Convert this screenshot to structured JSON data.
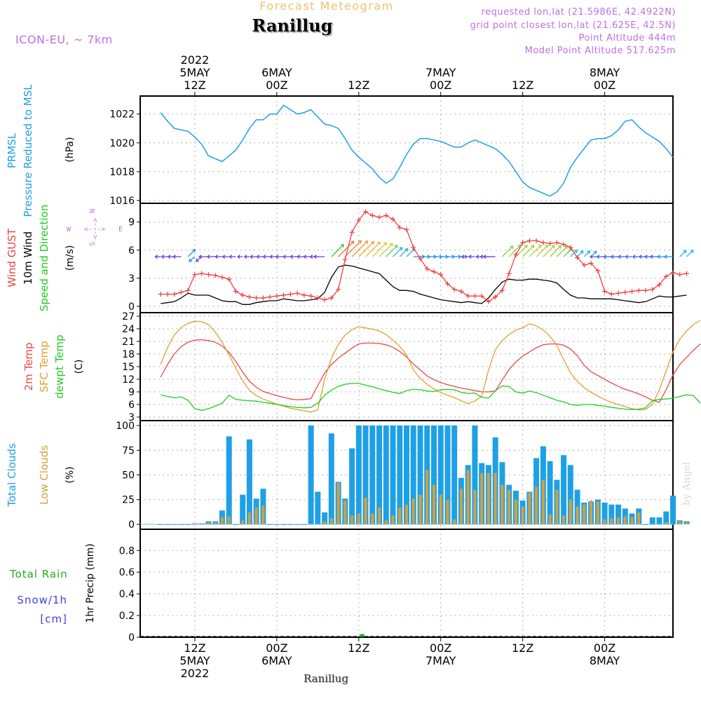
{
  "header": {
    "product": "Forecast Meteogram",
    "location": "Ranillug",
    "model": "ICON-EU, ~ 7km",
    "requested": "requested lon,lat (21.5986E, 42.4922N)",
    "grid_point": "grid point closest lon,lat (21.625E, 42.5N)",
    "point_altitude": "Point Altitude 444m",
    "model_altitude": "Model Point Altitude 517.625m",
    "credit": "by Angel",
    "footer_location": "Ranillug"
  },
  "time_axis": {
    "top": [
      {
        "hour": 12,
        "lines": [
          "2022",
          "5MAY",
          "12Z"
        ]
      },
      {
        "hour": 24,
        "lines": [
          "6MAY",
          "00Z"
        ]
      },
      {
        "hour": 36,
        "lines": [
          "12Z"
        ]
      },
      {
        "hour": 48,
        "lines": [
          "7MAY",
          "00Z"
        ]
      },
      {
        "hour": 60,
        "lines": [
          "12Z"
        ]
      },
      {
        "hour": 72,
        "lines": [
          "8MAY",
          "00Z"
        ]
      }
    ],
    "bottom": [
      {
        "hour": 12,
        "lines": [
          "12Z",
          "5MAY",
          "2022"
        ]
      },
      {
        "hour": 24,
        "lines": [
          "00Z",
          "6MAY"
        ]
      },
      {
        "hour": 36,
        "lines": [
          "12Z"
        ]
      },
      {
        "hour": 48,
        "lines": [
          "00Z",
          "7MAY"
        ]
      },
      {
        "hour": 60,
        "lines": [
          "12Z"
        ]
      },
      {
        "hour": 72,
        "lines": [
          "00Z",
          "8MAY"
        ]
      }
    ]
  },
  "colors": {
    "pressure": "#1ea0e6",
    "gust": "#f04040",
    "wind": "#000000",
    "t2m": "#e84848",
    "sfc": "#e0a030",
    "dewpt": "#22cc22",
    "total_cloud": "#1ea0e6",
    "low_cloud": "#d4a040",
    "rain": "#22aa22",
    "snow": "#4040e0",
    "header_purple": "#c070e0",
    "header_orange": "#f0c070",
    "compass": "#c070e0"
  },
  "chart_data": [
    {
      "panel": "pressure",
      "type": "line",
      "label_lines": [
        {
          "text": "PRMSL",
          "color": "#1ea0e6"
        },
        {
          "text": "Pressure Reduced to MSL",
          "color": "#1ea0e6"
        }
      ],
      "unit": "(hPa)",
      "ylim": [
        1016,
        1023.2
      ],
      "yticks": [
        "1016",
        "1018",
        "1020",
        "1022"
      ],
      "x_start": 7,
      "x_step": 1,
      "values": [
        1022.1,
        1021.5,
        1021.0,
        1020.9,
        1020.8,
        1020.4,
        1019.9,
        1019.1,
        1018.9,
        1018.7,
        1019.1,
        1019.5,
        1020.2,
        1021.0,
        1021.6,
        1021.6,
        1022.0,
        1022.0,
        1022.6,
        1022.3,
        1022.0,
        1022.1,
        1022.3,
        1021.8,
        1021.3,
        1021.2,
        1021.0,
        1020.3,
        1019.5,
        1019.0,
        1018.6,
        1018.2,
        1017.6,
        1017.2,
        1017.5,
        1018.3,
        1019.2,
        1019.9,
        1020.3,
        1020.3,
        1020.2,
        1020.1,
        1019.9,
        1019.7,
        1019.7,
        1020.0,
        1020.2,
        1020.0,
        1019.8,
        1019.6,
        1019.2,
        1018.7,
        1018.0,
        1017.3,
        1016.9,
        1016.7,
        1016.5,
        1016.3,
        1016.6,
        1017.2,
        1018.3,
        1019.0,
        1019.6,
        1020.2,
        1020.3,
        1020.3,
        1020.5,
        1020.9,
        1021.5,
        1021.6,
        1021.1,
        1020.7,
        1020.4,
        1020.1,
        1019.6,
        1019.0
      ]
    },
    {
      "panel": "wind",
      "type": "line",
      "label_lines": [
        {
          "text": "Wind GUST",
          "color": "#f04040"
        },
        {
          "text": "10m Wind",
          "color": "#000000"
        },
        {
          "text": "Speed and Direction",
          "color": "#22cc22"
        }
      ],
      "unit": "(m/s)",
      "compass": "N S W E <--> ",
      "ylim": [
        0,
        11
      ],
      "yticks": [
        "0",
        "3",
        "6",
        "9"
      ],
      "x_start": 7,
      "x_step": 1,
      "series": [
        {
          "name": "Wind GUST",
          "values": [
            1.3,
            1.3,
            1.3,
            1.5,
            1.7,
            3.4,
            3.5,
            3.4,
            3.3,
            3.1,
            2.9,
            1.6,
            1.2,
            1.0,
            0.9,
            0.9,
            1.0,
            1.1,
            1.2,
            1.3,
            1.4,
            1.2,
            1.1,
            0.9,
            0.7,
            0.9,
            1.8,
            5.0,
            7.9,
            9.2,
            10.1,
            9.7,
            9.5,
            9.7,
            9.3,
            8.4,
            8.2,
            6.3,
            5.1,
            4.0,
            3.7,
            3.4,
            2.4,
            1.8,
            1.6,
            1.1,
            1.1,
            1.1,
            0.5,
            1.0,
            1.7,
            3.5,
            5.5,
            6.8,
            7.0,
            7.0,
            6.8,
            6.7,
            6.8,
            6.6,
            6.3,
            5.2,
            4.4,
            4.6,
            3.8,
            1.6,
            1.3,
            1.4,
            1.5,
            1.6,
            1.7,
            1.7,
            1.8,
            2.3,
            3.2,
            3.6,
            3.4,
            3.5
          ]
        },
        {
          "name": "10m Wind",
          "values": [
            0.3,
            0.4,
            0.5,
            0.9,
            1.4,
            1.2,
            1.2,
            1.2,
            0.9,
            0.6,
            0.5,
            0.5,
            0.2,
            0.2,
            0.4,
            0.5,
            0.6,
            0.6,
            0.8,
            0.7,
            0.6,
            0.6,
            0.7,
            0.8,
            1.5,
            3.1,
            4.2,
            4.4,
            4.3,
            4.1,
            3.9,
            3.7,
            3.5,
            2.8,
            2.1,
            1.7,
            1.7,
            1.6,
            1.3,
            1.1,
            0.9,
            0.7,
            0.6,
            0.5,
            0.4,
            0.5,
            0.4,
            0.3,
            0.9,
            1.8,
            2.6,
            2.9,
            2.8,
            2.8,
            2.9,
            2.9,
            2.8,
            2.7,
            2.5,
            1.8,
            1.2,
            0.9,
            0.9,
            0.8,
            0.8,
            0.8,
            0.8,
            0.7,
            0.6,
            0.5,
            0.4,
            0.5,
            0.8,
            1.1,
            1.0,
            1.0,
            1.1,
            1.2
          ]
        }
      ],
      "barb_level": 5.3,
      "barb_dirs": [
        "W",
        "W",
        "W",
        "W",
        "NE",
        "SW",
        "SW",
        "W",
        "W",
        "W",
        "W",
        "W",
        "W",
        "W",
        "W",
        "W",
        "W",
        "W",
        "W",
        "W",
        "W",
        "W",
        "W",
        "W",
        "W",
        "NE",
        "NE",
        "NE",
        "NE",
        "NE",
        "NE",
        "NE",
        "NE",
        "NE",
        "NE",
        "NE",
        "NE",
        "E",
        "E",
        "E",
        "E",
        "E",
        "E",
        "E",
        "E",
        "W",
        "W",
        "W",
        "W",
        "W",
        "NE",
        "NE",
        "NE",
        "NE",
        "NE",
        "NE",
        "NE",
        "NE",
        "NE",
        "NE",
        "NE",
        "NE",
        "NE",
        "NE",
        "W",
        "W",
        "W",
        "W",
        "W",
        "W",
        "W",
        "W",
        "W",
        "W",
        "W",
        "W",
        "NE",
        "NE"
      ],
      "barb_colors": [
        "#7040d0",
        "#7040d0",
        "#7040d0",
        "#7040d0",
        "#2090e0",
        "#2090e0",
        "#7040d0",
        "#7040d0",
        "#7040d0",
        "#7040d0",
        "#7040d0",
        "#7040d0",
        "#7040d0",
        "#7040d0",
        "#7040d0",
        "#7040d0",
        "#7040d0",
        "#7040d0",
        "#7040d0",
        "#7040d0",
        "#7040d0",
        "#7040d0",
        "#7040d0",
        "#7040d0",
        "#7040d0",
        "#30c030",
        "#f07030",
        "#f08030",
        "#f09030",
        "#f0a030",
        "#f0b030",
        "#e0c030",
        "#c0d030",
        "#60d040",
        "#20b0e0",
        "#20b0e0",
        "#20b0e0",
        "#2090e0",
        "#2090e0",
        "#2090e0",
        "#2090e0",
        "#2090e0",
        "#2090e0",
        "#2090e0",
        "#2090e0",
        "#7040d0",
        "#7040d0",
        "#7040d0",
        "#7040d0",
        "#7040d0",
        "#80d030",
        "#90d030",
        "#a0d030",
        "#a0d030",
        "#b0d030",
        "#b0d030",
        "#a0d030",
        "#90d030",
        "#80d040",
        "#60c050",
        "#20b0e0",
        "#20b0e0",
        "#20b0e0",
        "#20b0e0",
        "#4060e0",
        "#4060e0",
        "#4060e0",
        "#4060e0",
        "#4060e0",
        "#4060e0",
        "#4060e0",
        "#4060e0",
        "#4060e0",
        "#4060e0",
        "#2090e0",
        "#2090e0",
        "#20b0e0",
        "#20b0e0"
      ]
    },
    {
      "panel": "temperature",
      "type": "line",
      "label_lines": [
        {
          "text": "2m Temp",
          "color": "#e84848"
        },
        {
          "text": "SFC Temp",
          "color": "#e0a030"
        },
        {
          "text": "dewpt Temp",
          "color": "#22cc22"
        }
      ],
      "unit": "(C)",
      "ylim": [
        3,
        27
      ],
      "yticks": [
        "3",
        "6",
        "9",
        "12",
        "15",
        "18",
        "21",
        "24",
        "27"
      ],
      "x_start": 7,
      "x_step": 1,
      "series": [
        {
          "name": "2m Temp",
          "values": [
            12.5,
            15.5,
            18.0,
            19.8,
            20.8,
            21.3,
            21.4,
            21.2,
            20.8,
            19.9,
            18.4,
            16.2,
            13.7,
            11.5,
            10.1,
            9.1,
            8.6,
            8.1,
            7.7,
            7.3,
            7.1,
            7.2,
            7.4,
            10.5,
            13.5,
            15.5,
            17.0,
            18.2,
            19.4,
            20.4,
            20.6,
            20.6,
            20.5,
            20.2,
            19.6,
            18.6,
            17.3,
            15.6,
            14.2,
            12.8,
            11.9,
            11.2,
            10.7,
            10.3,
            9.9,
            9.6,
            9.3,
            9.0,
            9.0,
            9.2,
            11.8,
            14.3,
            16.1,
            17.5,
            18.5,
            19.5,
            20.2,
            20.4,
            20.4,
            20.1,
            19.2,
            17.6,
            15.3,
            13.8,
            12.9,
            12.0,
            11.1,
            10.3,
            9.6,
            9.1,
            8.5,
            7.8,
            7.0,
            6.5,
            9.5,
            13.0,
            15.5,
            17.2,
            18.9,
            20.4
          ]
        },
        {
          "name": "SFC Temp",
          "values": [
            15.5,
            19.5,
            22.5,
            24.3,
            25.3,
            25.8,
            25.7,
            25.0,
            23.2,
            20.8,
            17.8,
            14.6,
            11.6,
            9.4,
            8.1,
            7.3,
            6.7,
            6.1,
            5.6,
            5.1,
            4.8,
            4.5,
            4.2,
            4.7,
            12.0,
            17.0,
            20.3,
            22.5,
            23.8,
            24.5,
            24.2,
            23.9,
            23.5,
            22.6,
            21.3,
            19.8,
            17.8,
            14.2,
            12.2,
            10.8,
            9.7,
            8.8,
            8.2,
            7.6,
            6.9,
            6.2,
            6.8,
            8.0,
            14.2,
            19.0,
            21.2,
            22.6,
            23.7,
            24.2,
            25.2,
            24.7,
            23.7,
            22.2,
            20.0,
            16.7,
            13.5,
            11.5,
            10.0,
            8.9,
            8.0,
            7.2,
            6.5,
            6.0,
            5.5,
            5.0,
            4.7,
            4.8,
            6.0,
            9.5,
            14.0,
            18.5,
            21.5,
            23.5,
            25.0,
            26.0
          ]
        },
        {
          "name": "dewpt Temp",
          "values": [
            8.3,
            7.9,
            7.6,
            7.8,
            7.0,
            5.0,
            4.6,
            5.0,
            5.6,
            6.3,
            8.2,
            7.2,
            7.0,
            6.9,
            6.8,
            6.5,
            6.3,
            6.0,
            5.7,
            5.5,
            5.3,
            5.2,
            5.3,
            6.3,
            8.2,
            9.4,
            10.3,
            10.8,
            11.0,
            11.0,
            10.6,
            10.2,
            9.7,
            9.3,
            8.9,
            8.6,
            9.3,
            9.6,
            9.5,
            9.2,
            9.1,
            9.5,
            9.6,
            9.5,
            8.9,
            8.6,
            8.7,
            7.7,
            7.5,
            9.3,
            10.4,
            10.3,
            9.0,
            8.7,
            9.2,
            8.8,
            8.2,
            7.6,
            7.0,
            6.6,
            6.0,
            5.8,
            6.0,
            6.0,
            5.8,
            5.6,
            5.3,
            5.1,
            4.9,
            4.8,
            4.9,
            5.2,
            6.9,
            7.2,
            7.3,
            7.5,
            7.9,
            8.3,
            8.1,
            6.3
          ]
        }
      ]
    },
    {
      "panel": "clouds",
      "type": "bar",
      "label_lines": [
        {
          "text": "Total Clouds",
          "color": "#1ea0e6"
        },
        {
          "text": "Low Clouds",
          "color": "#d4a040"
        }
      ],
      "unit": "(%)",
      "ylim": [
        -5,
        105
      ],
      "yticks": [
        "0",
        "25",
        "50",
        "75",
        "100"
      ],
      "x_start": 7,
      "x_step": 1,
      "series": [
        {
          "name": "Total Clouds",
          "values": [
            0,
            0,
            0,
            0,
            0,
            1,
            1,
            3,
            3,
            14,
            89,
            0,
            30,
            86,
            26,
            36,
            0,
            0,
            0,
            0,
            0,
            0,
            100,
            33,
            12,
            92,
            43,
            26,
            77,
            100,
            100,
            100,
            100,
            100,
            100,
            100,
            100,
            100,
            100,
            100,
            100,
            100,
            100,
            100,
            47,
            60,
            100,
            62,
            60,
            88,
            63,
            40,
            34,
            24,
            33,
            67,
            79,
            64,
            45,
            70,
            60,
            35,
            22,
            23,
            25,
            22,
            20,
            20,
            16,
            11,
            16,
            0,
            7,
            7,
            13,
            29,
            4,
            3
          ]
        },
        {
          "name": "Low Clouds",
          "values": [
            0,
            0,
            0,
            0,
            0,
            1,
            1,
            2,
            2,
            7,
            8,
            0,
            4,
            12,
            17,
            19,
            0,
            0,
            0,
            0,
            0,
            0,
            0,
            0,
            3,
            6,
            42,
            24,
            9,
            11,
            27,
            11,
            17,
            4,
            9,
            17,
            20,
            26,
            30,
            55,
            40,
            30,
            25,
            5,
            36,
            55,
            35,
            52,
            52,
            52,
            40,
            35,
            25,
            18,
            32,
            38,
            45,
            10,
            35,
            9,
            25,
            18,
            20,
            24,
            23,
            5,
            6,
            7,
            8,
            7,
            12,
            0,
            0,
            0,
            2,
            0,
            3,
            2
          ]
        }
      ]
    },
    {
      "panel": "precip",
      "type": "bar",
      "label_lines": [
        {
          "text": "Total Rain",
          "color": "#22aa22"
        },
        {
          "text": "Snow/1h",
          "color": "#4040e0"
        },
        {
          "text": "[cm]",
          "color": "#4040e0"
        }
      ],
      "unit": "1hr Precip (mm)",
      "ylim": [
        0,
        0.97
      ],
      "yticks": [
        "0",
        "0.2",
        "0.4",
        "0.6",
        "0.8"
      ],
      "rain": [
        {
          "hour": 36.5,
          "value": 0.01
        }
      ],
      "snow": []
    }
  ]
}
